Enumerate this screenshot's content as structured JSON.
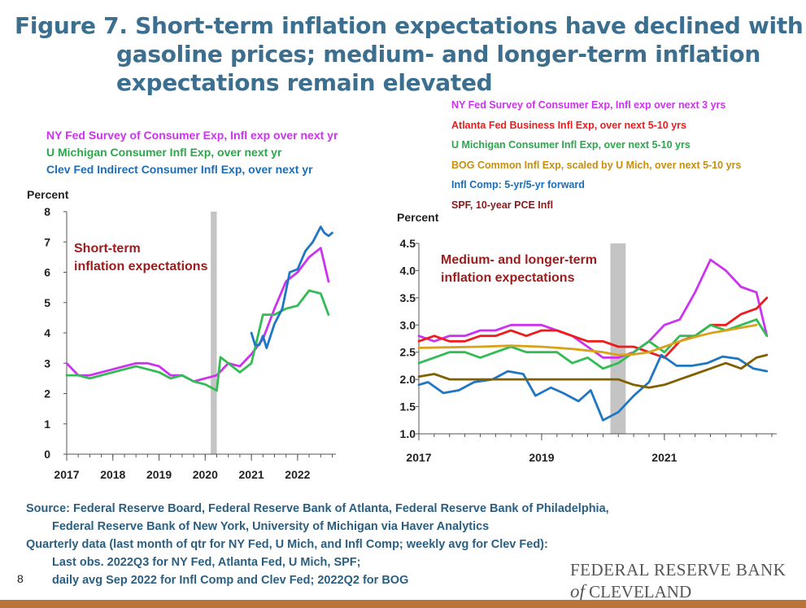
{
  "title": {
    "line1": "Figure 7. Short-term inflation expectations have declined with",
    "line2": "gasoline prices; medium- and longer-term inflation",
    "line3": "expectations remain elevated"
  },
  "chart_data": [
    {
      "type": "line",
      "title": "",
      "annotation": "Short-term inflation expectations",
      "annotation_lines": [
        "Short-term",
        "inflation expectations"
      ],
      "ylabel": "Percent",
      "xlabel": "",
      "xlim": [
        2017.0,
        2022.83
      ],
      "ylim": [
        0,
        8
      ],
      "xticks": [
        2017,
        2018,
        2019,
        2020,
        2021,
        2022
      ],
      "yticks": [
        0,
        1,
        2,
        3,
        4,
        5,
        6,
        7,
        8
      ],
      "recession_band": [
        2020.12,
        2020.25
      ],
      "legend_position": "top-left",
      "series": [
        {
          "name": "NY Fed Survey of Consumer Exp, Infl exp over next yr",
          "color": "#cc33ee",
          "x": [
            2017.0,
            2017.25,
            2017.5,
            2017.75,
            2018.0,
            2018.25,
            2018.5,
            2018.75,
            2019.0,
            2019.25,
            2019.5,
            2019.75,
            2020.0,
            2020.25,
            2020.5,
            2020.75,
            2021.0,
            2021.25,
            2021.5,
            2021.75,
            2022.0,
            2022.25,
            2022.5,
            2022.67
          ],
          "values": [
            3.0,
            2.6,
            2.6,
            2.7,
            2.8,
            2.9,
            3.0,
            3.0,
            2.9,
            2.6,
            2.6,
            2.4,
            2.5,
            2.6,
            3.0,
            2.9,
            3.3,
            3.8,
            4.8,
            5.7,
            6.0,
            6.5,
            6.8,
            5.7
          ]
        },
        {
          "name": "U Michigan Consumer Infl Exp, over next yr",
          "color": "#33bb55",
          "x": [
            2017.0,
            2017.25,
            2017.5,
            2017.75,
            2018.0,
            2018.25,
            2018.5,
            2018.75,
            2019.0,
            2019.25,
            2019.5,
            2019.75,
            2020.0,
            2020.25,
            2020.33,
            2020.5,
            2020.75,
            2021.0,
            2021.25,
            2021.5,
            2021.75,
            2022.0,
            2022.25,
            2022.5,
            2022.67
          ],
          "values": [
            2.6,
            2.6,
            2.5,
            2.6,
            2.7,
            2.8,
            2.9,
            2.8,
            2.7,
            2.5,
            2.6,
            2.4,
            2.3,
            2.1,
            3.2,
            3.0,
            2.7,
            3.0,
            4.6,
            4.6,
            4.8,
            4.9,
            5.4,
            5.3,
            4.6
          ]
        },
        {
          "name": "Clev Fed Indirect Consumer Infl Exp, over next yr",
          "color": "#1f77c4",
          "x": [
            2021.0,
            2021.08,
            2021.17,
            2021.25,
            2021.33,
            2021.5,
            2021.67,
            2021.75,
            2021.83,
            2022.0,
            2022.17,
            2022.33,
            2022.5,
            2022.58,
            2022.67,
            2022.75
          ],
          "values": [
            4.0,
            3.6,
            3.6,
            3.9,
            3.5,
            4.3,
            4.8,
            5.4,
            6.0,
            6.1,
            6.7,
            7.0,
            7.5,
            7.3,
            7.2,
            7.3
          ]
        }
      ]
    },
    {
      "type": "line",
      "title": "",
      "annotation": "Medium- and longer-term inflation expectations",
      "annotation_lines": [
        "Medium- and longer-term",
        "inflation expectations"
      ],
      "ylabel": "Percent",
      "xlabel": "",
      "xlim": [
        2017.0,
        2022.83
      ],
      "ylim": [
        1.0,
        4.5
      ],
      "xticks": [
        2017,
        2019,
        2021
      ],
      "yticks": [
        1.0,
        1.5,
        2.0,
        2.5,
        3.0,
        3.5,
        4.0,
        4.5
      ],
      "recession_band": [
        2020.12,
        2020.37
      ],
      "legend_position": "top",
      "series": [
        {
          "name": "NY Fed Survey of Consumer Exp, Infl exp over next 3 yrs",
          "color": "#cc33ee",
          "x": [
            2017.0,
            2017.25,
            2017.5,
            2017.75,
            2018.0,
            2018.25,
            2018.5,
            2018.75,
            2019.0,
            2019.25,
            2019.5,
            2019.75,
            2020.0,
            2020.25,
            2020.5,
            2020.75,
            2021.0,
            2021.25,
            2021.5,
            2021.75,
            2022.0,
            2022.25,
            2022.5,
            2022.67
          ],
          "values": [
            2.8,
            2.7,
            2.8,
            2.8,
            2.9,
            2.9,
            3.0,
            3.0,
            3.0,
            2.9,
            2.8,
            2.6,
            2.4,
            2.4,
            2.5,
            2.7,
            3.0,
            3.1,
            3.6,
            4.2,
            4.0,
            3.7,
            3.6,
            2.8
          ]
        },
        {
          "name": "Atlanta Fed Business Infl Exp, over next 5-10 yrs",
          "color": "#ee1c1c",
          "x": [
            2017.0,
            2017.25,
            2017.5,
            2017.75,
            2018.0,
            2018.25,
            2018.5,
            2018.75,
            2019.0,
            2019.25,
            2019.5,
            2019.75,
            2020.0,
            2020.25,
            2020.5,
            2020.75,
            2021.0,
            2021.25,
            2021.5,
            2021.75,
            2022.0,
            2022.25,
            2022.5,
            2022.67
          ],
          "values": [
            2.7,
            2.8,
            2.7,
            2.7,
            2.8,
            2.8,
            2.9,
            2.8,
            2.9,
            2.9,
            2.8,
            2.7,
            2.7,
            2.6,
            2.6,
            2.5,
            2.4,
            2.7,
            2.8,
            3.0,
            3.0,
            3.2,
            3.3,
            3.5
          ]
        },
        {
          "name": "U Michigan Consumer Infl Exp, over next 5-10 yrs",
          "color": "#33bb55",
          "x": [
            2017.0,
            2017.25,
            2017.5,
            2017.75,
            2018.0,
            2018.25,
            2018.5,
            2018.75,
            2019.0,
            2019.25,
            2019.5,
            2019.75,
            2020.0,
            2020.25,
            2020.5,
            2020.75,
            2021.0,
            2021.25,
            2021.5,
            2021.75,
            2022.0,
            2022.25,
            2022.5,
            2022.67
          ],
          "values": [
            2.3,
            2.4,
            2.5,
            2.5,
            2.4,
            2.5,
            2.6,
            2.5,
            2.5,
            2.5,
            2.3,
            2.4,
            2.2,
            2.3,
            2.5,
            2.7,
            2.5,
            2.8,
            2.8,
            3.0,
            2.9,
            3.0,
            3.1,
            2.8
          ]
        },
        {
          "name": "BOG Common Infl Exp, scaled by U Mich, over next 5-10 yrs",
          "color": "#d9a21b",
          "x": [
            2017.0,
            2017.5,
            2018.0,
            2018.5,
            2019.0,
            2019.5,
            2020.0,
            2020.25,
            2020.5,
            2020.75,
            2021.0,
            2021.25,
            2021.5,
            2021.75,
            2022.0,
            2022.25,
            2022.5
          ],
          "values": [
            2.58,
            2.59,
            2.6,
            2.62,
            2.6,
            2.56,
            2.5,
            2.45,
            2.46,
            2.5,
            2.6,
            2.7,
            2.78,
            2.85,
            2.9,
            2.95,
            3.0
          ]
        },
        {
          "name": "Infl Comp: 5-yr/5-yr forward",
          "color": "#1f77c4",
          "x": [
            2017.0,
            2017.15,
            2017.4,
            2017.65,
            2017.9,
            2018.2,
            2018.45,
            2018.7,
            2018.9,
            2019.15,
            2019.35,
            2019.6,
            2019.8,
            2020.0,
            2020.25,
            2020.5,
            2020.75,
            2020.95,
            2021.2,
            2021.45,
            2021.7,
            2021.95,
            2022.2,
            2022.45,
            2022.67
          ],
          "values": [
            1.9,
            1.95,
            1.75,
            1.8,
            1.95,
            2.0,
            2.15,
            2.1,
            1.7,
            1.85,
            1.75,
            1.6,
            1.8,
            1.25,
            1.4,
            1.7,
            1.95,
            2.45,
            2.25,
            2.25,
            2.3,
            2.42,
            2.38,
            2.2,
            2.15
          ]
        },
        {
          "name": "SPF, 10-year PCE Infl",
          "color": "#806000",
          "x": [
            2017.0,
            2017.25,
            2017.5,
            2017.75,
            2018.0,
            2018.25,
            2018.5,
            2018.75,
            2019.0,
            2019.25,
            2019.5,
            2019.75,
            2020.0,
            2020.25,
            2020.5,
            2020.75,
            2021.0,
            2021.25,
            2021.5,
            2021.75,
            2022.0,
            2022.25,
            2022.5,
            2022.67
          ],
          "values": [
            2.05,
            2.1,
            2.0,
            2.0,
            2.0,
            2.0,
            2.0,
            2.0,
            2.0,
            2.0,
            2.0,
            2.0,
            2.0,
            2.0,
            1.9,
            1.85,
            1.9,
            2.0,
            2.1,
            2.2,
            2.3,
            2.2,
            2.4,
            2.45
          ]
        }
      ]
    }
  ],
  "source": {
    "line1": "Source: Federal Reserve Board, Federal Reserve Bank of Atlanta, Federal Reserve Bank of Philadelphia,",
    "line2": "Federal Reserve Bank of New York, University of Michigan via Haver Analytics",
    "line3": "Quarterly data (last month of qtr for NY Fed, U Mich, and Infl Comp; weekly avg for Clev Fed):",
    "line4": "Last obs. 2022Q3 for NY Fed, Atlanta Fed, U Mich, SPF;",
    "line5": "daily avg Sep 2022 for Infl Comp and Clev Fed; 2022Q2 for BOG"
  },
  "page_number": "8",
  "logo": {
    "line1": "FEDERAL RESERVE BANK",
    "of": "of",
    "city": "CLEVELAND"
  }
}
